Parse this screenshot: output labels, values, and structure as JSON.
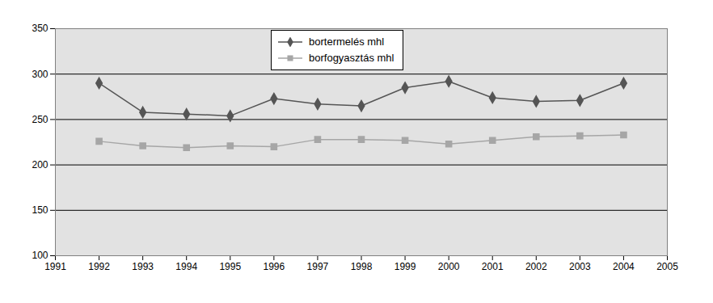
{
  "chart_data": {
    "type": "line",
    "x": [
      1992,
      1993,
      1994,
      1995,
      1996,
      1997,
      1998,
      1999,
      2000,
      2001,
      2002,
      2003,
      2004
    ],
    "series": [
      {
        "name": "bortermelés mhl",
        "color": "#555555",
        "marker": "diamond",
        "values": [
          290,
          258,
          256,
          254,
          273,
          267,
          265,
          285,
          292,
          274,
          270,
          271,
          290
        ]
      },
      {
        "name": "borfogyasztás mhl",
        "color": "#a6a6a6",
        "marker": "square",
        "values": [
          226,
          221,
          219,
          221,
          220,
          228,
          228,
          227,
          223,
          227,
          231,
          232,
          233
        ]
      }
    ],
    "xlim": [
      1991,
      2005
    ],
    "xticks": [
      1991,
      1992,
      1993,
      1994,
      1995,
      1996,
      1997,
      1998,
      1999,
      2000,
      2001,
      2002,
      2003,
      2004,
      2005
    ],
    "ylim": [
      100,
      350
    ],
    "yticks": [
      100,
      150,
      200,
      250,
      300,
      350
    ],
    "grid": true,
    "legend": "top"
  }
}
